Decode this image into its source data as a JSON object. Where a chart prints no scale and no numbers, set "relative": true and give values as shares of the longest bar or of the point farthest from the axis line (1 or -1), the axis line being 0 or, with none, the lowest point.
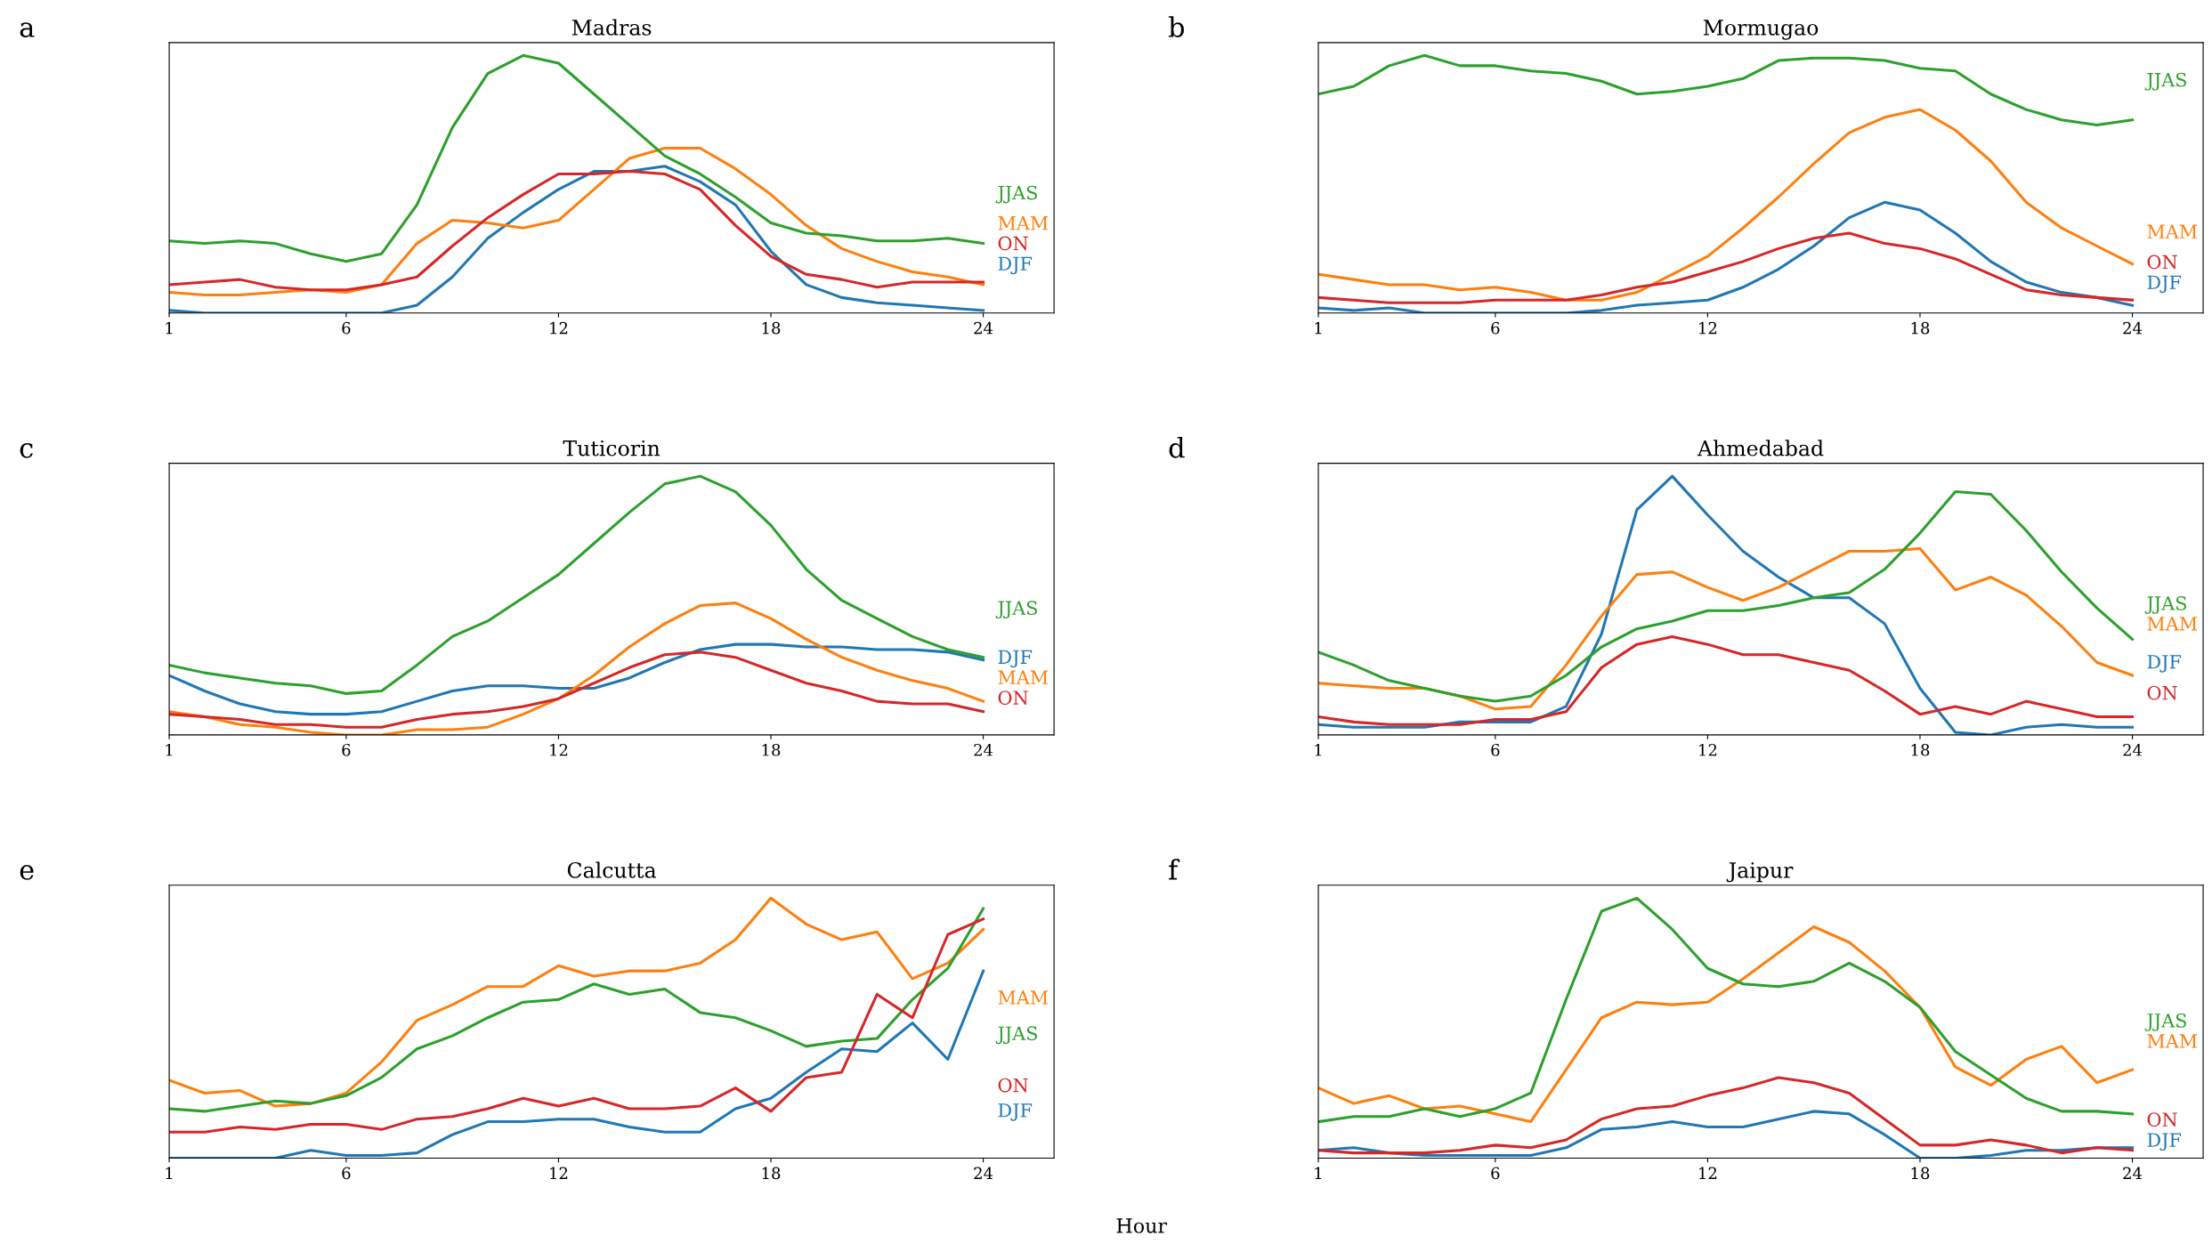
{
  "chart_data": [
    {
      "type": "line",
      "title": "Madras",
      "annotations": [
        "a"
      ],
      "relative": true,
      "x": [
        1,
        2,
        3,
        4,
        5,
        6,
        7,
        8,
        9,
        10,
        11,
        12,
        13,
        14,
        15,
        16,
        17,
        18,
        19,
        20,
        21,
        22,
        23,
        24
      ],
      "xlim": [
        1,
        26
      ],
      "xticks": [
        1,
        6,
        12,
        18,
        24
      ],
      "grid": false,
      "tick_labels": "x",
      "series": [
        {
          "name": "DJF",
          "color": "#1f77b4",
          "values": [
            0.01,
            0.0,
            0.0,
            0.0,
            0.0,
            0.0,
            0.0,
            0.03,
            0.14,
            0.29,
            0.39,
            0.48,
            0.55,
            0.55,
            0.57,
            0.51,
            0.42,
            0.24,
            0.11,
            0.06,
            0.04,
            0.03,
            0.02,
            0.01
          ]
        },
        {
          "name": "MAM",
          "color": "#ff7f0e",
          "values": [
            0.08,
            0.07,
            0.07,
            0.08,
            0.09,
            0.08,
            0.11,
            0.27,
            0.36,
            0.35,
            0.33,
            0.36,
            0.48,
            0.6,
            0.64,
            0.64,
            0.56,
            0.46,
            0.34,
            0.25,
            0.2,
            0.16,
            0.14,
            0.11
          ]
        },
        {
          "name": "JJAS",
          "color": "#2ca02c",
          "values": [
            0.28,
            0.27,
            0.28,
            0.27,
            0.23,
            0.2,
            0.23,
            0.42,
            0.72,
            0.93,
            1.0,
            0.97,
            0.85,
            0.73,
            0.61,
            0.54,
            0.45,
            0.35,
            0.31,
            0.3,
            0.28,
            0.28,
            0.29,
            0.27
          ]
        },
        {
          "name": "ON",
          "color": "#d62728",
          "values": [
            0.11,
            0.12,
            0.13,
            0.1,
            0.09,
            0.09,
            0.11,
            0.14,
            0.26,
            0.37,
            0.46,
            0.54,
            0.54,
            0.55,
            0.54,
            0.48,
            0.34,
            0.22,
            0.15,
            0.13,
            0.1,
            0.12,
            0.12,
            0.12
          ]
        }
      ]
    },
    {
      "type": "line",
      "title": "Mormugao",
      "annotations": [
        "b"
      ],
      "relative": true,
      "x": [
        1,
        2,
        3,
        4,
        5,
        6,
        7,
        8,
        9,
        10,
        11,
        12,
        13,
        14,
        15,
        16,
        17,
        18,
        19,
        20,
        21,
        22,
        23,
        24
      ],
      "xlim": [
        1,
        26
      ],
      "xticks": [
        1,
        6,
        12,
        18,
        24
      ],
      "grid": false,
      "tick_labels": "x",
      "series": [
        {
          "name": "DJF",
          "color": "#1f77b4",
          "values": [
            0.02,
            0.01,
            0.02,
            0.0,
            0.0,
            0.0,
            0.0,
            0.0,
            0.01,
            0.03,
            0.04,
            0.05,
            0.1,
            0.17,
            0.26,
            0.37,
            0.43,
            0.4,
            0.31,
            0.2,
            0.12,
            0.08,
            0.06,
            0.03
          ]
        },
        {
          "name": "MAM",
          "color": "#ff7f0e",
          "values": [
            0.15,
            0.13,
            0.11,
            0.11,
            0.09,
            0.1,
            0.08,
            0.05,
            0.05,
            0.08,
            0.15,
            0.22,
            0.33,
            0.45,
            0.58,
            0.7,
            0.76,
            0.79,
            0.71,
            0.59,
            0.43,
            0.33,
            0.26,
            0.19
          ]
        },
        {
          "name": "JJAS",
          "color": "#2ca02c",
          "values": [
            0.85,
            0.88,
            0.96,
            1.0,
            0.96,
            0.96,
            0.94,
            0.93,
            0.9,
            0.85,
            0.86,
            0.88,
            0.91,
            0.98,
            0.99,
            0.99,
            0.98,
            0.95,
            0.94,
            0.85,
            0.79,
            0.75,
            0.73,
            0.75
          ]
        },
        {
          "name": "ON",
          "color": "#d62728",
          "values": [
            0.06,
            0.05,
            0.04,
            0.04,
            0.04,
            0.05,
            0.05,
            0.05,
            0.07,
            0.1,
            0.12,
            0.16,
            0.2,
            0.25,
            0.29,
            0.31,
            0.27,
            0.25,
            0.21,
            0.15,
            0.09,
            0.07,
            0.06,
            0.05
          ]
        }
      ]
    },
    {
      "type": "line",
      "title": "Tuticorin",
      "annotations": [
        "c"
      ],
      "relative": true,
      "x": [
        1,
        2,
        3,
        4,
        5,
        6,
        7,
        8,
        9,
        10,
        11,
        12,
        13,
        14,
        15,
        16,
        17,
        18,
        19,
        20,
        21,
        22,
        23,
        24
      ],
      "xlim": [
        1,
        26
      ],
      "xticks": [
        1,
        6,
        12,
        18,
        24
      ],
      "grid": false,
      "tick_labels": "x",
      "series": [
        {
          "name": "DJF",
          "color": "#1f77b4",
          "values": [
            0.23,
            0.17,
            0.12,
            0.09,
            0.08,
            0.08,
            0.09,
            0.13,
            0.17,
            0.19,
            0.19,
            0.18,
            0.18,
            0.22,
            0.28,
            0.33,
            0.35,
            0.35,
            0.34,
            0.34,
            0.33,
            0.33,
            0.32,
            0.29
          ]
        },
        {
          "name": "MAM",
          "color": "#ff7f0e",
          "values": [
            0.09,
            0.07,
            0.04,
            0.03,
            0.01,
            0.0,
            0.0,
            0.02,
            0.02,
            0.03,
            0.08,
            0.14,
            0.23,
            0.34,
            0.43,
            0.5,
            0.51,
            0.45,
            0.37,
            0.3,
            0.25,
            0.21,
            0.18,
            0.13
          ]
        },
        {
          "name": "JJAS",
          "color": "#2ca02c",
          "values": [
            0.27,
            0.24,
            0.22,
            0.2,
            0.19,
            0.16,
            0.17,
            0.27,
            0.38,
            0.44,
            0.53,
            0.62,
            0.74,
            0.86,
            0.97,
            1.0,
            0.94,
            0.81,
            0.64,
            0.52,
            0.45,
            0.38,
            0.33,
            0.3
          ]
        },
        {
          "name": "ON",
          "color": "#d62728",
          "values": [
            0.08,
            0.07,
            0.06,
            0.04,
            0.04,
            0.03,
            0.03,
            0.06,
            0.08,
            0.09,
            0.11,
            0.14,
            0.2,
            0.26,
            0.31,
            0.32,
            0.3,
            0.25,
            0.2,
            0.17,
            0.13,
            0.12,
            0.12,
            0.09
          ]
        }
      ]
    },
    {
      "type": "line",
      "title": "Ahmedabad",
      "annotations": [
        "d"
      ],
      "relative": true,
      "x": [
        1,
        2,
        3,
        4,
        5,
        6,
        7,
        8,
        9,
        10,
        11,
        12,
        13,
        14,
        15,
        16,
        17,
        18,
        19,
        20,
        21,
        22,
        23,
        24
      ],
      "xlim": [
        1,
        26
      ],
      "xticks": [
        1,
        6,
        12,
        18,
        24
      ],
      "grid": false,
      "tick_labels": "x",
      "series": [
        {
          "name": "DJF",
          "color": "#1f77b4",
          "values": [
            0.04,
            0.03,
            0.03,
            0.03,
            0.05,
            0.05,
            0.05,
            0.11,
            0.39,
            0.87,
            1.0,
            0.85,
            0.71,
            0.61,
            0.53,
            0.53,
            0.43,
            0.18,
            0.01,
            0.0,
            0.03,
            0.04,
            0.03,
            0.03
          ]
        },
        {
          "name": "MAM",
          "color": "#ff7f0e",
          "values": [
            0.2,
            0.19,
            0.18,
            0.18,
            0.15,
            0.1,
            0.11,
            0.27,
            0.46,
            0.62,
            0.63,
            0.57,
            0.52,
            0.57,
            0.64,
            0.71,
            0.71,
            0.72,
            0.56,
            0.61,
            0.54,
            0.42,
            0.28,
            0.23
          ]
        },
        {
          "name": "JJAS",
          "color": "#2ca02c",
          "values": [
            0.32,
            0.27,
            0.21,
            0.18,
            0.15,
            0.13,
            0.15,
            0.23,
            0.34,
            0.41,
            0.44,
            0.48,
            0.48,
            0.5,
            0.53,
            0.55,
            0.64,
            0.78,
            0.94,
            0.93,
            0.79,
            0.63,
            0.49,
            0.37
          ]
        },
        {
          "name": "ON",
          "color": "#d62728",
          "values": [
            0.07,
            0.05,
            0.04,
            0.04,
            0.04,
            0.06,
            0.06,
            0.09,
            0.26,
            0.35,
            0.38,
            0.35,
            0.31,
            0.31,
            0.28,
            0.25,
            0.17,
            0.08,
            0.11,
            0.08,
            0.13,
            0.1,
            0.07,
            0.07
          ]
        }
      ]
    },
    {
      "type": "line",
      "title": "Calcutta",
      "annotations": [
        "e"
      ],
      "xlabel": "Hour",
      "relative": true,
      "x": [
        1,
        2,
        3,
        4,
        5,
        6,
        7,
        8,
        9,
        10,
        11,
        12,
        13,
        14,
        15,
        16,
        17,
        18,
        19,
        20,
        21,
        22,
        23,
        24
      ],
      "xlim": [
        1,
        26
      ],
      "xticks": [
        1,
        6,
        12,
        18,
        24
      ],
      "grid": false,
      "tick_labels": "x",
      "series": [
        {
          "name": "DJF",
          "color": "#1f77b4",
          "values": [
            0.0,
            0.0,
            0.0,
            0.0,
            0.03,
            0.01,
            0.01,
            0.02,
            0.09,
            0.14,
            0.14,
            0.15,
            0.15,
            0.12,
            0.1,
            0.1,
            0.19,
            0.23,
            0.33,
            0.42,
            0.41,
            0.52,
            0.38,
            0.72
          ]
        },
        {
          "name": "MAM",
          "color": "#ff7f0e",
          "values": [
            0.3,
            0.25,
            0.26,
            0.2,
            0.21,
            0.25,
            0.37,
            0.53,
            0.59,
            0.66,
            0.66,
            0.74,
            0.7,
            0.72,
            0.72,
            0.75,
            0.84,
            1.0,
            0.9,
            0.84,
            0.87,
            0.69,
            0.75,
            0.88
          ]
        },
        {
          "name": "JJAS",
          "color": "#2ca02c",
          "values": [
            0.19,
            0.18,
            0.2,
            0.22,
            0.21,
            0.24,
            0.31,
            0.42,
            0.47,
            0.54,
            0.6,
            0.61,
            0.67,
            0.63,
            0.65,
            0.56,
            0.54,
            0.49,
            0.43,
            0.45,
            0.46,
            0.61,
            0.73,
            0.96
          ]
        },
        {
          "name": "ON",
          "color": "#d62728",
          "values": [
            0.1,
            0.1,
            0.12,
            0.11,
            0.13,
            0.13,
            0.11,
            0.15,
            0.16,
            0.19,
            0.23,
            0.2,
            0.23,
            0.19,
            0.19,
            0.2,
            0.27,
            0.18,
            0.31,
            0.33,
            0.63,
            0.54,
            0.86,
            0.92
          ]
        }
      ]
    },
    {
      "type": "line",
      "title": "Jaipur",
      "annotations": [
        "f"
      ],
      "relative": true,
      "x": [
        1,
        2,
        3,
        4,
        5,
        6,
        7,
        8,
        9,
        10,
        11,
        12,
        13,
        14,
        15,
        16,
        17,
        18,
        19,
        20,
        21,
        22,
        23,
        24
      ],
      "xlim": [
        1,
        26
      ],
      "xticks": [
        1,
        6,
        12,
        18,
        24
      ],
      "grid": false,
      "tick_labels": "x",
      "series": [
        {
          "name": "DJF",
          "color": "#1f77b4",
          "values": [
            0.03,
            0.04,
            0.02,
            0.01,
            0.01,
            0.01,
            0.01,
            0.04,
            0.11,
            0.12,
            0.14,
            0.12,
            0.12,
            0.15,
            0.18,
            0.17,
            0.09,
            0.0,
            0.0,
            0.01,
            0.03,
            0.03,
            0.04,
            0.04
          ]
        },
        {
          "name": "MAM",
          "color": "#ff7f0e",
          "values": [
            0.27,
            0.21,
            0.24,
            0.19,
            0.2,
            0.17,
            0.14,
            0.34,
            0.54,
            0.6,
            0.59,
            0.6,
            0.69,
            0.79,
            0.89,
            0.83,
            0.72,
            0.58,
            0.35,
            0.28,
            0.38,
            0.43,
            0.29,
            0.34
          ]
        },
        {
          "name": "JJAS",
          "color": "#2ca02c",
          "values": [
            0.14,
            0.16,
            0.16,
            0.19,
            0.16,
            0.19,
            0.25,
            0.61,
            0.95,
            1.0,
            0.88,
            0.73,
            0.67,
            0.66,
            0.68,
            0.75,
            0.68,
            0.58,
            0.41,
            0.32,
            0.23,
            0.18,
            0.18,
            0.17
          ]
        },
        {
          "name": "ON",
          "color": "#d62728",
          "values": [
            0.03,
            0.02,
            0.02,
            0.02,
            0.03,
            0.05,
            0.04,
            0.07,
            0.15,
            0.19,
            0.2,
            0.24,
            0.27,
            0.31,
            0.29,
            0.25,
            0.15,
            0.05,
            0.05,
            0.07,
            0.05,
            0.02,
            0.04,
            0.03
          ]
        }
      ]
    }
  ]
}
